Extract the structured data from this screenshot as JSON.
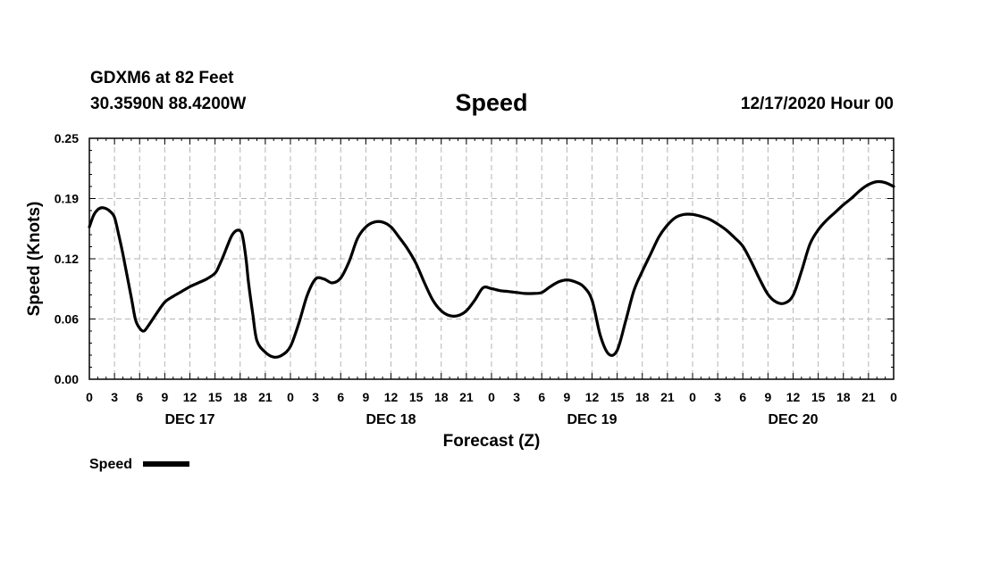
{
  "header": {
    "station": "GDXM6 at 82 Feet",
    "coords": "30.3590N 88.4200W",
    "title": "Speed",
    "datetime": "12/17/2020 Hour 00"
  },
  "chart_data": {
    "type": "line",
    "title": "Speed",
    "xlabel": "Forecast (Z)",
    "ylabel": "Speed (Knots)",
    "ylim": [
      0.0,
      0.25
    ],
    "yticks": [
      "0.00",
      "0.06",
      "0.12",
      "0.19",
      "0.25"
    ],
    "yvalues": [
      0.0,
      0.0625,
      0.125,
      0.1875,
      0.25
    ],
    "xlim": [
      0,
      96
    ],
    "x_tick_step_hours": 3,
    "x_tick_labels": [
      "0",
      "3",
      "6",
      "9",
      "12",
      "15",
      "18",
      "21",
      "0",
      "3",
      "6",
      "9",
      "12",
      "15",
      "18",
      "21",
      "0",
      "3",
      "6",
      "9",
      "12",
      "15",
      "18",
      "21",
      "0",
      "3",
      "6",
      "9",
      "12",
      "15",
      "18",
      "21",
      "0"
    ],
    "day_labels": [
      {
        "label": "DEC 17",
        "hour": 12
      },
      {
        "label": "DEC 18",
        "hour": 36
      },
      {
        "label": "DEC 19",
        "hour": 60
      },
      {
        "label": "DEC 20",
        "hour": 84
      }
    ],
    "grid": true,
    "legend": "bottom-left",
    "series": [
      {
        "name": "Speed",
        "color": "#000000",
        "x": [
          0,
          0.5,
          1,
          1.5,
          2,
          2.5,
          3,
          3.5,
          4,
          5,
          5.5,
          6,
          6.5,
          7,
          8,
          9,
          10,
          11,
          12,
          13,
          14,
          15,
          15.5,
          16,
          16.5,
          17,
          17.5,
          18,
          18.3,
          18.7,
          19,
          19.5,
          20,
          21,
          22,
          23,
          24,
          25,
          26,
          27,
          28,
          29,
          30,
          31,
          32,
          33,
          34,
          35,
          36,
          37,
          38,
          39,
          40,
          41,
          42,
          43,
          44,
          45,
          46,
          47,
          48,
          49,
          50,
          51,
          52,
          53,
          54,
          55,
          56,
          57,
          58,
          59,
          60,
          61,
          62,
          63,
          64,
          65,
          66,
          67,
          68,
          69,
          70,
          71,
          72,
          73,
          74,
          75,
          76,
          77,
          78,
          79,
          80,
          81,
          82,
          83,
          84,
          85,
          86,
          87,
          88,
          89,
          90,
          91,
          92,
          93,
          94,
          95,
          96
        ],
        "y": [
          0.158,
          0.17,
          0.176,
          0.178,
          0.177,
          0.174,
          0.168,
          0.15,
          0.13,
          0.085,
          0.062,
          0.053,
          0.05,
          0.055,
          0.068,
          0.08,
          0.086,
          0.091,
          0.096,
          0.1,
          0.104,
          0.11,
          0.118,
          0.128,
          0.139,
          0.149,
          0.154,
          0.154,
          0.148,
          0.125,
          0.1,
          0.068,
          0.04,
          0.028,
          0.023,
          0.025,
          0.034,
          0.058,
          0.087,
          0.104,
          0.104,
          0.1,
          0.105,
          0.122,
          0.146,
          0.158,
          0.163,
          0.163,
          0.158,
          0.147,
          0.135,
          0.12,
          0.1,
          0.082,
          0.071,
          0.066,
          0.066,
          0.071,
          0.082,
          0.095,
          0.094,
          0.092,
          0.091,
          0.09,
          0.089,
          0.089,
          0.09,
          0.096,
          0.101,
          0.103,
          0.101,
          0.096,
          0.082,
          0.045,
          0.026,
          0.03,
          0.06,
          0.092,
          0.112,
          0.13,
          0.148,
          0.16,
          0.168,
          0.171,
          0.171,
          0.169,
          0.166,
          0.161,
          0.155,
          0.147,
          0.138,
          0.122,
          0.104,
          0.088,
          0.08,
          0.079,
          0.087,
          0.112,
          0.14,
          0.155,
          0.165,
          0.173,
          0.181,
          0.188,
          0.196,
          0.202,
          0.205,
          0.204,
          0.2
        ]
      }
    ]
  }
}
